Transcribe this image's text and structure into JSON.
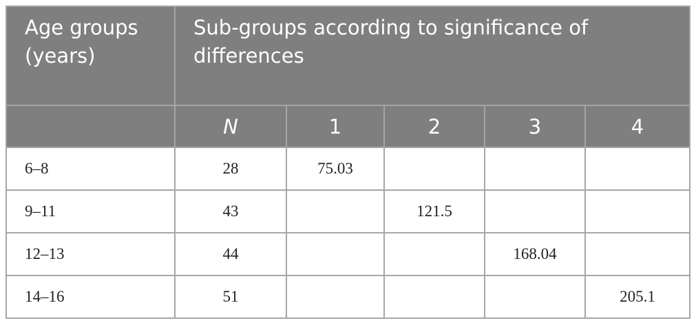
{
  "table": {
    "header": {
      "age": "Age groups (years)",
      "group": "Sub-groups according to significance of differences"
    },
    "columns": [
      "N",
      "1",
      "2",
      "3",
      "4"
    ],
    "rows": [
      [
        "6–8",
        28,
        75.03,
        null,
        null,
        null
      ],
      [
        "9–11",
        43,
        null,
        121.5,
        null,
        null
      ],
      [
        "12–13",
        44,
        null,
        null,
        168.04,
        null
      ],
      [
        "14–16",
        51,
        null,
        null,
        null,
        205.1
      ]
    ]
  }
}
